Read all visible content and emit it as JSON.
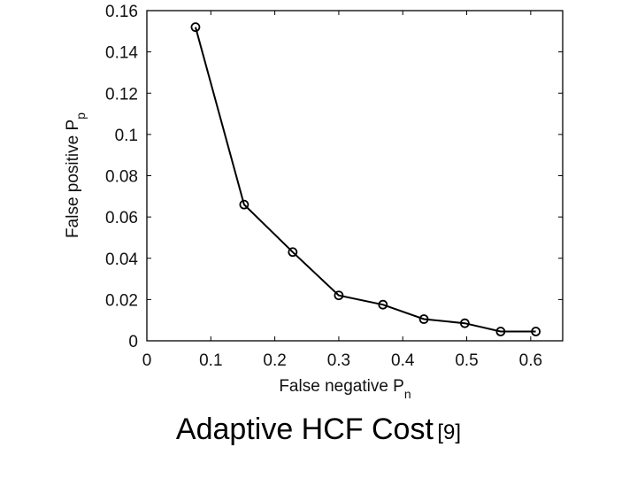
{
  "chart_data": {
    "type": "line",
    "x": [
      0.076,
      0.152,
      0.228,
      0.3,
      0.369,
      0.433,
      0.497,
      0.553,
      0.608
    ],
    "series": [
      {
        "values": [
          0.152,
          0.066,
          0.043,
          0.022,
          0.0175,
          0.0105,
          0.0085,
          0.0045,
          0.0045
        ]
      }
    ],
    "marker": "circle",
    "line_color": "#000000",
    "xlabel": "False negative P",
    "xlabel_subscript": "n",
    "ylabel": "False positive P",
    "ylabel_subscript": "p",
    "xlim": [
      0,
      0.65
    ],
    "ylim": [
      0,
      0.16
    ],
    "xticks": [
      0,
      0.1,
      0.2,
      0.3,
      0.4,
      0.5,
      0.6
    ],
    "xtick_labels": [
      "0",
      "0.1",
      "0.2",
      "0.3",
      "0.4",
      "0.5",
      "0.6"
    ],
    "yticks": [
      0,
      0.02,
      0.04,
      0.06,
      0.08,
      0.1,
      0.12,
      0.14,
      0.16
    ],
    "ytick_labels": [
      "0",
      "0.02",
      "0.04",
      "0.06",
      "0.08",
      "0.1",
      "0.12",
      "0.14",
      "0.16"
    ],
    "grid": false
  },
  "caption": {
    "text": "Adaptive HCF Cost",
    "reference": "[9]"
  }
}
